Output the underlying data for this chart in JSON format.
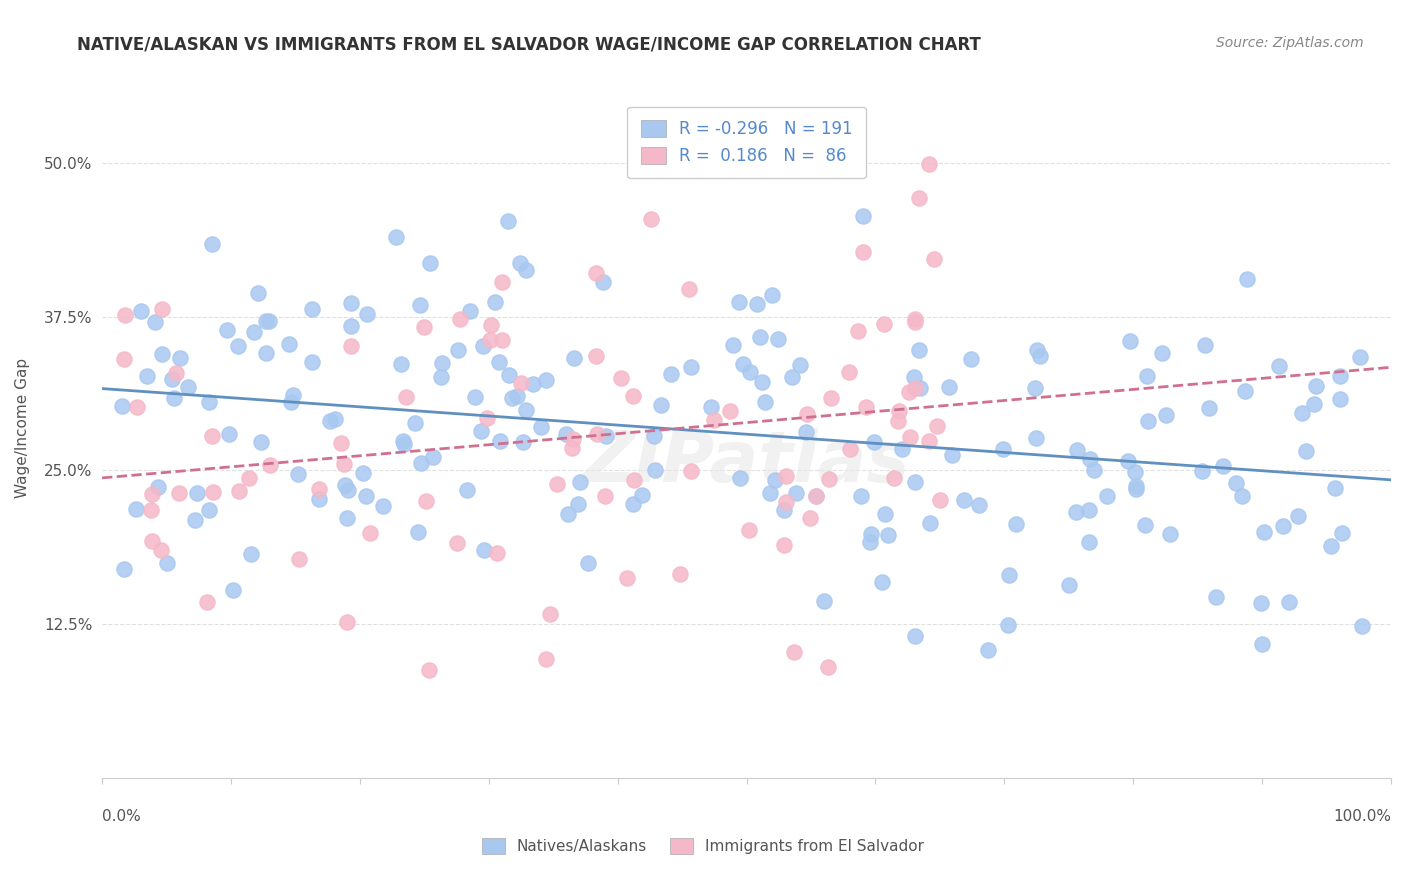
{
  "title": "NATIVE/ALASKAN VS IMMIGRANTS FROM EL SALVADOR WAGE/INCOME GAP CORRELATION CHART",
  "source_text": "Source: ZipAtlas.com",
  "ylabel": "Wage/Income Gap",
  "ytick_labels": [
    "12.5%",
    "25.0%",
    "37.5%",
    "50.0%"
  ],
  "ytick_values": [
    0.125,
    0.25,
    0.375,
    0.5
  ],
  "xlim": [
    0.0,
    1.0
  ],
  "ylim": [
    0.0,
    0.57
  ],
  "native_color": "#a8c8f0",
  "immigrant_color": "#f5b8c8",
  "native_line_color": "#6090c0",
  "immigrant_line_color": "#d07090",
  "native_R": -0.296,
  "native_N": 191,
  "immigrant_R": 0.186,
  "immigrant_N": 86,
  "background_color": "#ffffff",
  "grid_color": "#e0e0e0",
  "watermark": "ZIPatlas",
  "legend_text_color": "#5588cc",
  "bottom_legend_color": "#555555"
}
